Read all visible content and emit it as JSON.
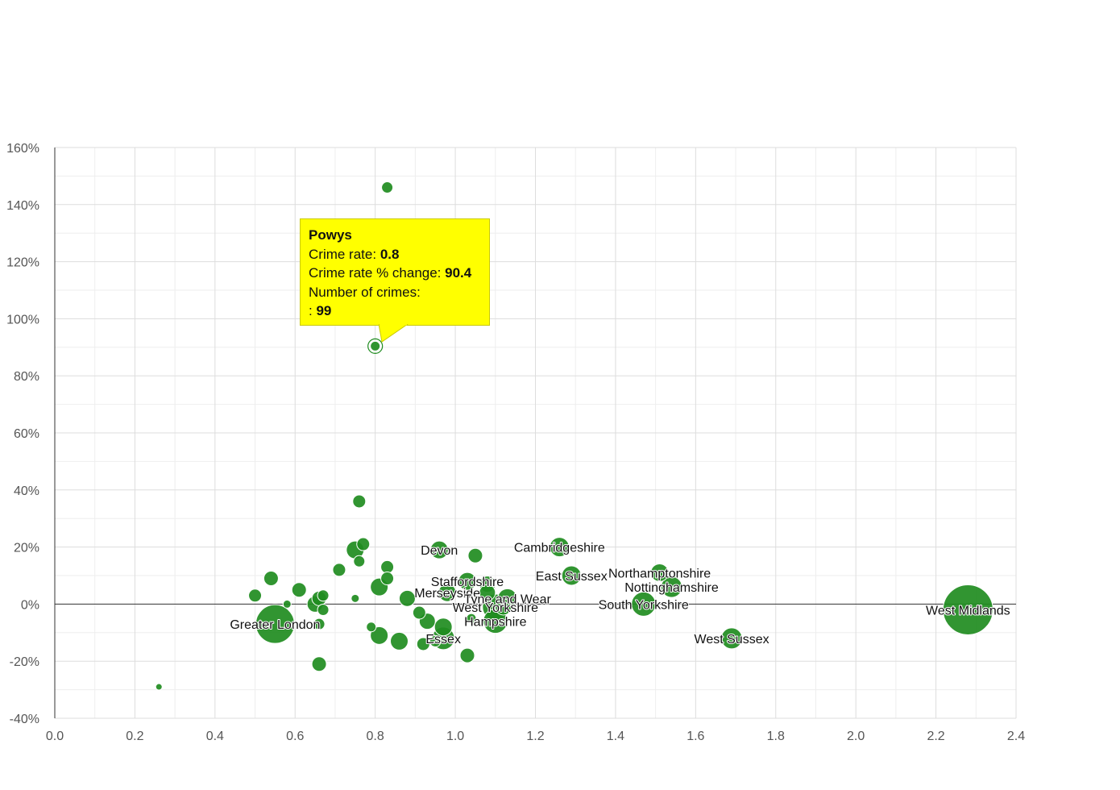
{
  "colors": {
    "bubble": "#1f8c1f",
    "bubble_stroke": "#ffffff",
    "tooltip_bg": "#ffff00",
    "grid": "#dddddd",
    "grid_minor": "#eeeeee",
    "zero_line": "#333333"
  },
  "tooltip": {
    "title": "Powys",
    "rate_label": "Crime rate:",
    "rate_value": "0.8",
    "change_label": "Crime rate % change:",
    "change_value": "90.4",
    "count_label": "Number of crimes:",
    "count_prefix": ":",
    "count_value": "99"
  },
  "chart_data": {
    "type": "scatter",
    "variant": "bubble",
    "title": "",
    "xlabel": "",
    "ylabel": "",
    "xlim": [
      0,
      2.4
    ],
    "ylim": [
      -40,
      160
    ],
    "x_ticks": [
      "0.0",
      "0.2",
      "0.4",
      "0.6",
      "0.8",
      "1.0",
      "1.2",
      "1.4",
      "1.6",
      "1.8",
      "2.0",
      "2.2",
      "2.4"
    ],
    "y_ticks": [
      "-40%",
      "-20%",
      "0%",
      "20%",
      "40%",
      "60%",
      "80%",
      "100%",
      "120%",
      "140%",
      "160%"
    ],
    "grid": true,
    "legend": "none",
    "points": [
      {
        "label": "West Midlands",
        "x": 2.28,
        "y": -2,
        "size": 31
      },
      {
        "label": "Greater London",
        "x": 0.55,
        "y": -7,
        "size": 24
      },
      {
        "label": "West Sussex",
        "x": 1.69,
        "y": -12,
        "size": 13
      },
      {
        "label": "South Yorkshire",
        "x": 1.47,
        "y": 0,
        "size": 15
      },
      {
        "label": "Nottinghamshire",
        "x": 1.54,
        "y": 6,
        "size": 13
      },
      {
        "label": "Northamptonshire",
        "x": 1.51,
        "y": 11,
        "size": 11
      },
      {
        "label": "East Sussex",
        "x": 1.29,
        "y": 10,
        "size": 12
      },
      {
        "label": "Cambridgeshire",
        "x": 1.26,
        "y": 20,
        "size": 12
      },
      {
        "label": "Devon",
        "x": 0.96,
        "y": 19,
        "size": 11
      },
      {
        "label": "Staffordshire",
        "x": 1.03,
        "y": 8,
        "size": 11
      },
      {
        "label": "Merseyside",
        "x": 0.98,
        "y": 4,
        "size": 11
      },
      {
        "label": "Tyne and Wear",
        "x": 1.13,
        "y": 2,
        "size": 12
      },
      {
        "label": "West Yorkshire",
        "x": 1.1,
        "y": -1,
        "size": 16
      },
      {
        "label": "Hampshire",
        "x": 1.1,
        "y": -6,
        "size": 15
      },
      {
        "label": "Essex",
        "x": 0.97,
        "y": -12,
        "size": 14
      },
      {
        "label": "Powys",
        "x": 0.8,
        "y": 90.4,
        "size": 6
      },
      {
        "label": "",
        "x": 0.83,
        "y": 146,
        "size": 7
      },
      {
        "label": "",
        "x": 0.26,
        "y": -29,
        "size": 4
      },
      {
        "label": "",
        "x": 0.76,
        "y": 36,
        "size": 8
      },
      {
        "label": "",
        "x": 0.77,
        "y": 21,
        "size": 8
      },
      {
        "label": "",
        "x": 0.75,
        "y": 19,
        "size": 11
      },
      {
        "label": "",
        "x": 0.76,
        "y": 15,
        "size": 7
      },
      {
        "label": "",
        "x": 0.83,
        "y": 13,
        "size": 8
      },
      {
        "label": "",
        "x": 0.83,
        "y": 9,
        "size": 8
      },
      {
        "label": "",
        "x": 0.81,
        "y": 6,
        "size": 11
      },
      {
        "label": "",
        "x": 0.71,
        "y": 12,
        "size": 8
      },
      {
        "label": "",
        "x": 0.54,
        "y": 9,
        "size": 9
      },
      {
        "label": "",
        "x": 0.61,
        "y": 5,
        "size": 9
      },
      {
        "label": "",
        "x": 0.5,
        "y": 3,
        "size": 8
      },
      {
        "label": "",
        "x": 0.58,
        "y": 0,
        "size": 5
      },
      {
        "label": "",
        "x": 0.65,
        "y": 0,
        "size": 10
      },
      {
        "label": "",
        "x": 0.66,
        "y": 2,
        "size": 9
      },
      {
        "label": "",
        "x": 0.67,
        "y": 3,
        "size": 7
      },
      {
        "label": "",
        "x": 0.67,
        "y": -2,
        "size": 7
      },
      {
        "label": "",
        "x": 0.66,
        "y": -7,
        "size": 7
      },
      {
        "label": "",
        "x": 0.75,
        "y": 2,
        "size": 5
      },
      {
        "label": "",
        "x": 0.79,
        "y": -8,
        "size": 6
      },
      {
        "label": "",
        "x": 0.81,
        "y": -11,
        "size": 11
      },
      {
        "label": "",
        "x": 0.86,
        "y": -13,
        "size": 11
      },
      {
        "label": "",
        "x": 0.88,
        "y": 2,
        "size": 10
      },
      {
        "label": "",
        "x": 0.91,
        "y": -3,
        "size": 8
      },
      {
        "label": "",
        "x": 0.93,
        "y": -6,
        "size": 10
      },
      {
        "label": "",
        "x": 0.92,
        "y": -14,
        "size": 8
      },
      {
        "label": "",
        "x": 0.95,
        "y": -13,
        "size": 7
      },
      {
        "label": "",
        "x": 0.97,
        "y": -8,
        "size": 11
      },
      {
        "label": "",
        "x": 1.05,
        "y": 17,
        "size": 9
      },
      {
        "label": "",
        "x": 1.08,
        "y": 7,
        "size": 10
      },
      {
        "label": "",
        "x": 1.08,
        "y": 4,
        "size": 10
      },
      {
        "label": "",
        "x": 1.04,
        "y": -5,
        "size": 6
      },
      {
        "label": "",
        "x": 1.03,
        "y": -18,
        "size": 9
      },
      {
        "label": "",
        "x": 0.66,
        "y": -21,
        "size": 9
      },
      {
        "label": "",
        "x": 1.12,
        "y": -1,
        "size": 10
      }
    ]
  }
}
